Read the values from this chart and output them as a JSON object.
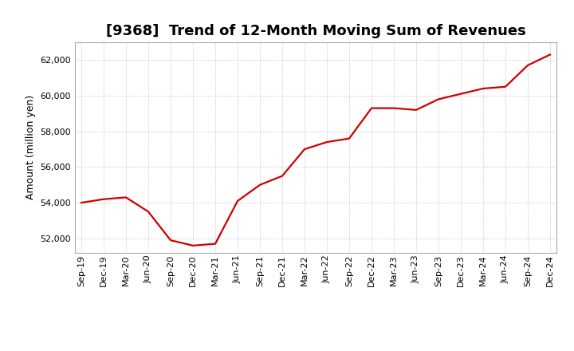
{
  "title": "[9368]  Trend of 12-Month Moving Sum of Revenues",
  "ylabel": "Amount (million yen)",
  "background_color": "#ffffff",
  "grid_color": "#999999",
  "line_color": "#cc0000",
  "x_labels": [
    "Sep-19",
    "Dec-19",
    "Mar-20",
    "Jun-20",
    "Sep-20",
    "Dec-20",
    "Mar-21",
    "Jun-21",
    "Sep-21",
    "Dec-21",
    "Mar-22",
    "Jun-22",
    "Sep-22",
    "Dec-22",
    "Mar-23",
    "Jun-23",
    "Sep-23",
    "Dec-23",
    "Mar-24",
    "Jun-24",
    "Sep-24",
    "Dec-24"
  ],
  "values": [
    54000,
    54200,
    54300,
    53500,
    51900,
    51600,
    51700,
    54100,
    55000,
    55500,
    57000,
    57400,
    57600,
    59300,
    59300,
    59200,
    59800,
    60100,
    60400,
    60500,
    61700,
    62300
  ],
  "ylim": [
    51200,
    63000
  ],
  "yticks": [
    52000,
    54000,
    56000,
    58000,
    60000,
    62000
  ],
  "title_fontsize": 13,
  "ylabel_fontsize": 9,
  "tick_fontsize": 8,
  "line_width": 1.6
}
